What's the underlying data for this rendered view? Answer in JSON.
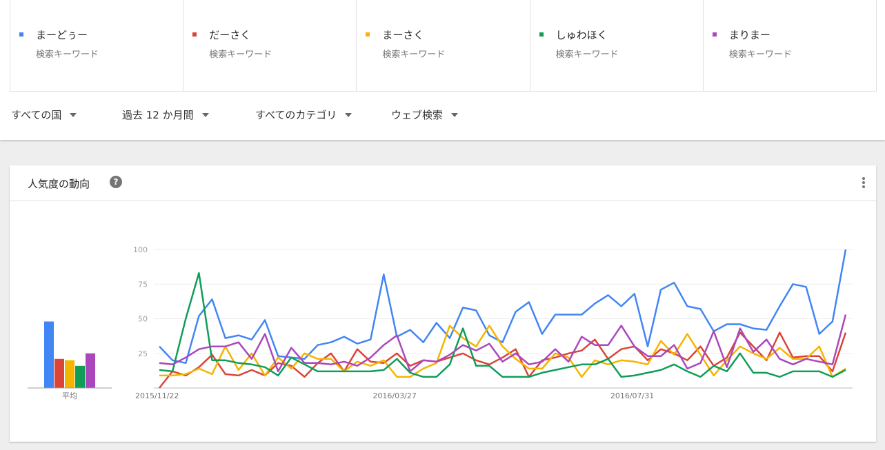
{
  "terms": [
    {
      "name": "まーどぅー",
      "subtitle": "検索キーワード",
      "color": "#4285f4"
    },
    {
      "name": "だーさく",
      "subtitle": "検索キーワード",
      "color": "#db4437"
    },
    {
      "name": "まーさく",
      "subtitle": "検索キーワード",
      "color": "#f4b400"
    },
    {
      "name": "しゅわほく",
      "subtitle": "検索キーワード",
      "color": "#0f9d58"
    },
    {
      "name": "まりまー",
      "subtitle": "検索キーワード",
      "color": "#ab47bc"
    }
  ],
  "filters": {
    "region": "すべての国",
    "period": "過去 12 か月間",
    "category": "すべてのカテゴリ",
    "search_type": "ウェブ検索"
  },
  "card": {
    "title": "人気度の動向",
    "help_icon": "question-circle-icon",
    "menu_icon": "more-vert-icon"
  },
  "chart_data": {
    "type": "line",
    "y_ticks": [
      "100",
      "75",
      "50",
      "25"
    ],
    "ylim": [
      0,
      100
    ],
    "x_labels": [
      "2015/11/22",
      "2016/03/27",
      "2016/07/31"
    ],
    "x_label_index": [
      0,
      18,
      36
    ],
    "average_label": "平均",
    "averages": [
      48,
      21,
      20,
      16,
      25
    ],
    "series": [
      {
        "name": "まーどぅー",
        "color": "#4285f4",
        "values": [
          30,
          20,
          18,
          52,
          64,
          36,
          38,
          35,
          49,
          23,
          22,
          21,
          31,
          33,
          37,
          32,
          35,
          82,
          37,
          42,
          33,
          47,
          36,
          58,
          56,
          38,
          33,
          55,
          62,
          39,
          53,
          53,
          53,
          61,
          67,
          59,
          68,
          30,
          71,
          76,
          59,
          57,
          41,
          46,
          46,
          43,
          42,
          59,
          75,
          73,
          39,
          48,
          100
        ]
      },
      {
        "name": "だーさく",
        "color": "#db4437",
        "values": [
          0,
          12,
          9,
          15,
          24,
          10,
          9,
          13,
          9,
          18,
          16,
          8,
          18,
          25,
          12,
          28,
          19,
          18,
          25,
          16,
          20,
          19,
          22,
          25,
          20,
          17,
          22,
          28,
          8,
          20,
          22,
          25,
          27,
          35,
          21,
          28,
          30,
          20,
          28,
          25,
          20,
          30,
          16,
          22,
          40,
          30,
          20,
          40,
          22,
          23,
          23,
          12,
          40
        ]
      },
      {
        "name": "まーさく",
        "color": "#f4b400",
        "values": [
          9,
          9,
          10,
          14,
          10,
          30,
          13,
          25,
          9,
          22,
          14,
          25,
          21,
          21,
          12,
          19,
          16,
          20,
          8,
          8,
          14,
          18,
          45,
          36,
          30,
          45,
          30,
          21,
          14,
          14,
          25,
          22,
          8,
          20,
          17,
          20,
          19,
          17,
          34,
          24,
          39,
          24,
          9,
          20,
          30,
          25,
          21,
          29,
          21,
          21,
          30,
          8,
          14
        ]
      },
      {
        "name": "しゅわほく",
        "color": "#0f9d58",
        "values": [
          13,
          12,
          50,
          83,
          20,
          20,
          18,
          17,
          15,
          9,
          22,
          17,
          12,
          12,
          12,
          12,
          12,
          13,
          21,
          11,
          8,
          8,
          17,
          43,
          16,
          16,
          8,
          8,
          8,
          11,
          13,
          15,
          17,
          17,
          21,
          8,
          9,
          11,
          13,
          17,
          12,
          8,
          16,
          12,
          25,
          11,
          11,
          8,
          12,
          12,
          12,
          8,
          13
        ]
      },
      {
        "name": "まりまー",
        "color": "#ab47bc",
        "values": [
          18,
          17,
          22,
          28,
          30,
          30,
          33,
          21,
          39,
          12,
          29,
          18,
          18,
          17,
          19,
          16,
          22,
          31,
          38,
          12,
          20,
          19,
          24,
          31,
          27,
          32,
          19,
          25,
          17,
          19,
          28,
          19,
          37,
          31,
          31,
          45,
          30,
          23,
          23,
          31,
          14,
          18,
          41,
          15,
          43,
          26,
          35,
          21,
          17,
          21,
          19,
          17,
          53
        ]
      }
    ]
  }
}
